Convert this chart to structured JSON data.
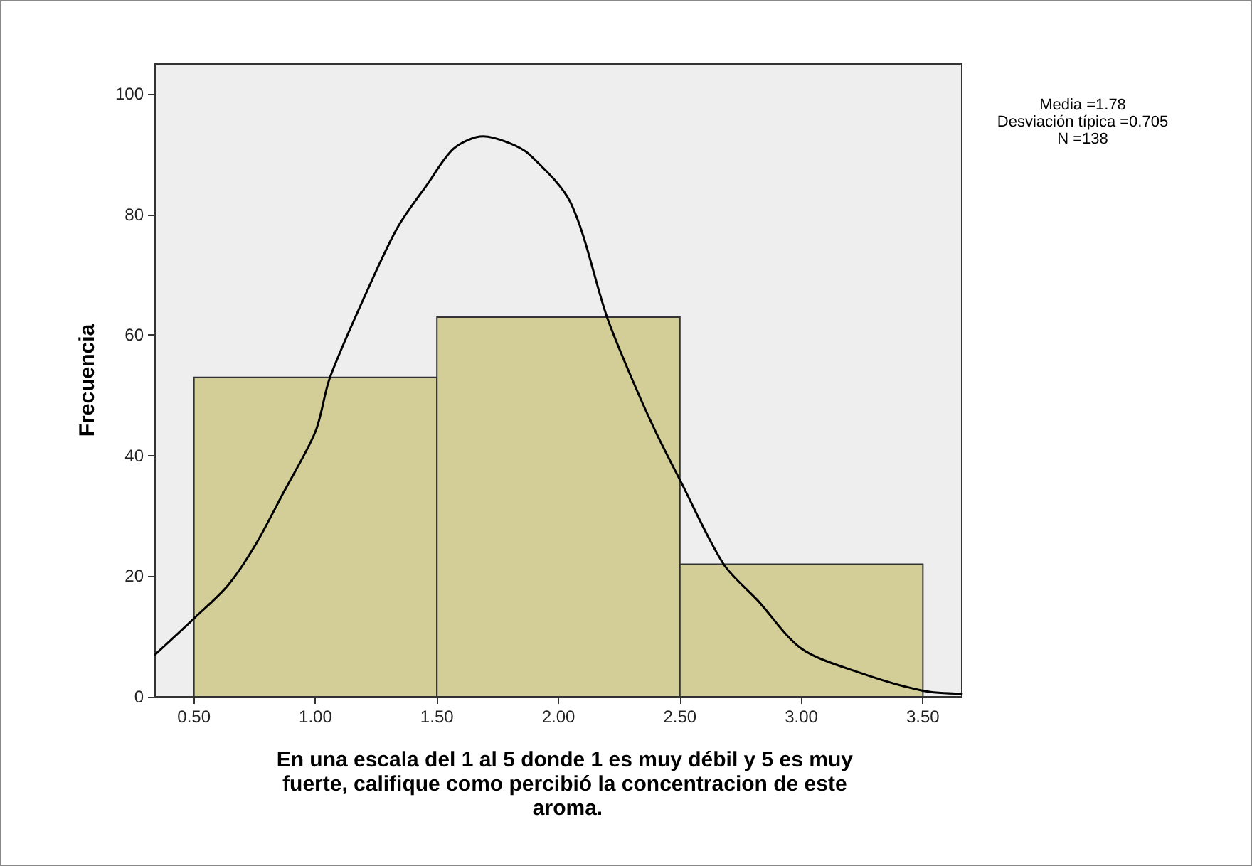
{
  "chart_data": {
    "type": "histogram",
    "xlabel": "En una escala del 1 al 5 donde 1 es muy débil y 5 es muy fuerte, califique como percibió la concentracion de este aroma.",
    "ylabel": "Frecuencia",
    "annotations": [
      "Media =1.78",
      "Desviación típica =0.705",
      "N =138"
    ],
    "series": [
      {
        "bins": [
          0.5,
          1.5,
          2.5,
          3.5
        ],
        "values": [
          53,
          63,
          22
        ],
        "color": "#d3ce97"
      },
      {
        "type": "line",
        "color": "#000000",
        "x": [
          0.34,
          0.5,
          0.64,
          0.75,
          0.87,
          1.0,
          1.06,
          1.22,
          1.34,
          1.46,
          1.57,
          1.69,
          1.79,
          1.88,
          2.05,
          2.2,
          2.3,
          2.4,
          2.5,
          2.68,
          2.82,
          3.0,
          3.24,
          3.5,
          3.66
        ],
        "values": [
          7,
          13,
          18.5,
          25,
          34,
          44,
          53,
          68,
          78,
          85,
          91,
          93,
          92,
          90,
          82,
          63,
          53,
          44,
          36,
          22,
          16,
          8,
          4,
          1,
          0.5
        ]
      }
    ],
    "xlim": [
      0.34,
      3.66
    ],
    "ylim": [
      0,
      105
    ],
    "xticks": [
      {
        "value": 0.5,
        "label": "0.50"
      },
      {
        "value": 1,
        "label": "1.00"
      },
      {
        "value": 1.5,
        "label": "1.50"
      },
      {
        "value": 2,
        "label": "2.00"
      },
      {
        "value": 2.5,
        "label": "2.50"
      },
      {
        "value": 3,
        "label": "3.00"
      },
      {
        "value": 3.5,
        "label": "3.50"
      }
    ],
    "yticks": [
      0,
      20,
      40,
      60,
      80,
      100
    ],
    "grid": false,
    "marker": "none",
    "line_style": "solid"
  }
}
